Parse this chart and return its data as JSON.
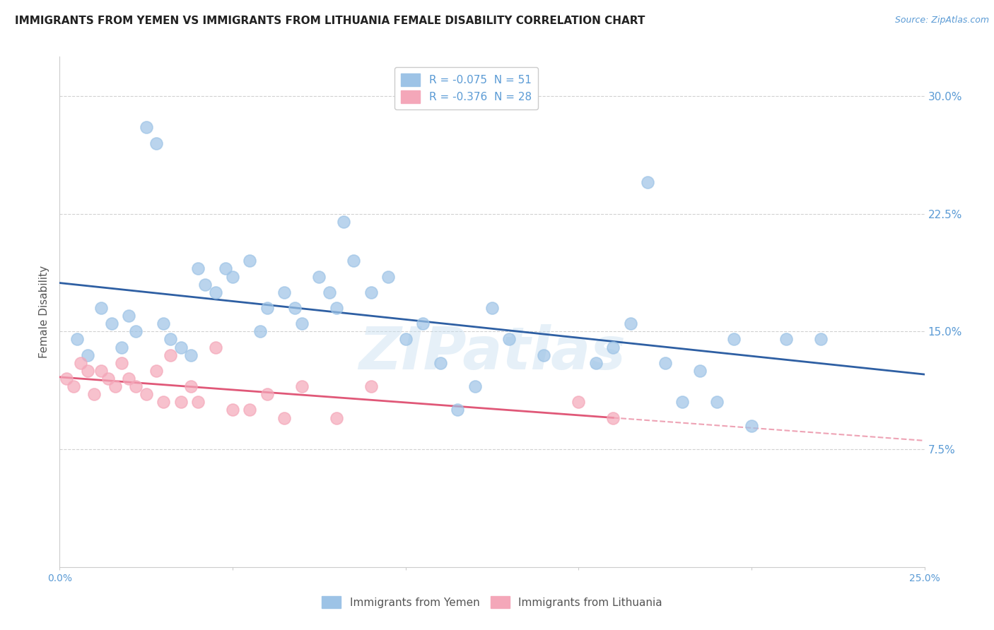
{
  "title": "IMMIGRANTS FROM YEMEN VS IMMIGRANTS FROM LITHUANIA FEMALE DISABILITY CORRELATION CHART",
  "source_text": "Source: ZipAtlas.com",
  "ylabel": "Female Disability",
  "xmin": 0.0,
  "xmax": 0.25,
  "ymin": 0.0,
  "ymax": 0.325,
  "yticks": [
    0.0,
    0.075,
    0.15,
    0.225,
    0.3
  ],
  "ytick_labels": [
    "",
    "7.5%",
    "15.0%",
    "22.5%",
    "30.0%"
  ],
  "xticks": [
    0.0,
    0.05,
    0.1,
    0.15,
    0.2,
    0.25
  ],
  "xtick_labels": [
    "0.0%",
    "",
    "",
    "",
    "",
    "25.0%"
  ],
  "legend_r1": "R = -0.075  N = 51",
  "legend_r2": "R = -0.376  N = 28",
  "legend_label1": "Immigrants from Yemen",
  "legend_label2": "Immigrants from Lithuania",
  "color_blue": "#9dc3e6",
  "color_pink": "#f4a7b9",
  "line_color_blue": "#2e5fa3",
  "line_color_pink": "#e05878",
  "watermark": "ZIPatlas",
  "yemen_x": [
    0.005,
    0.008,
    0.012,
    0.015,
    0.018,
    0.02,
    0.022,
    0.025,
    0.028,
    0.03,
    0.032,
    0.035,
    0.038,
    0.04,
    0.042,
    0.045,
    0.048,
    0.05,
    0.055,
    0.058,
    0.06,
    0.065,
    0.068,
    0.07,
    0.075,
    0.078,
    0.08,
    0.082,
    0.085,
    0.09,
    0.095,
    0.1,
    0.105,
    0.11,
    0.115,
    0.12,
    0.125,
    0.13,
    0.14,
    0.155,
    0.16,
    0.165,
    0.17,
    0.175,
    0.18,
    0.185,
    0.19,
    0.195,
    0.2,
    0.21,
    0.22
  ],
  "yemen_y": [
    0.145,
    0.135,
    0.165,
    0.155,
    0.14,
    0.16,
    0.15,
    0.28,
    0.27,
    0.155,
    0.145,
    0.14,
    0.135,
    0.19,
    0.18,
    0.175,
    0.19,
    0.185,
    0.195,
    0.15,
    0.165,
    0.175,
    0.165,
    0.155,
    0.185,
    0.175,
    0.165,
    0.22,
    0.195,
    0.175,
    0.185,
    0.145,
    0.155,
    0.13,
    0.1,
    0.115,
    0.165,
    0.145,
    0.135,
    0.13,
    0.14,
    0.155,
    0.245,
    0.13,
    0.105,
    0.125,
    0.105,
    0.145,
    0.09,
    0.145,
    0.145
  ],
  "lithuania_x": [
    0.002,
    0.004,
    0.006,
    0.008,
    0.01,
    0.012,
    0.014,
    0.016,
    0.018,
    0.02,
    0.022,
    0.025,
    0.028,
    0.03,
    0.032,
    0.035,
    0.038,
    0.04,
    0.045,
    0.05,
    0.055,
    0.06,
    0.065,
    0.07,
    0.08,
    0.09,
    0.15,
    0.16
  ],
  "lithuania_y": [
    0.12,
    0.115,
    0.13,
    0.125,
    0.11,
    0.125,
    0.12,
    0.115,
    0.13,
    0.12,
    0.115,
    0.11,
    0.125,
    0.105,
    0.135,
    0.105,
    0.115,
    0.105,
    0.14,
    0.1,
    0.1,
    0.11,
    0.095,
    0.115,
    0.095,
    0.115,
    0.105,
    0.095
  ],
  "background_color": "#ffffff",
  "grid_color": "#cccccc",
  "axis_color": "#5b9bd5",
  "title_fontsize": 11,
  "label_fontsize": 11
}
